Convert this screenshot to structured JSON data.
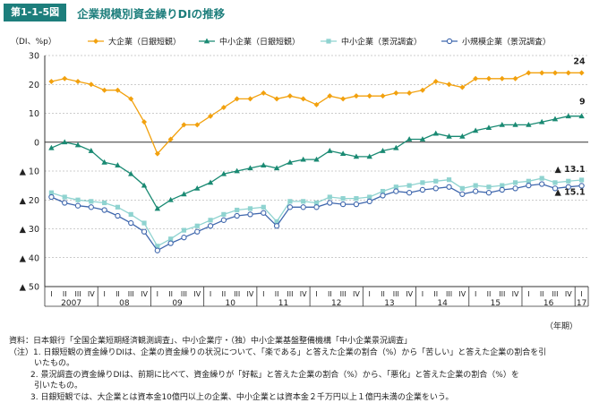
{
  "figure": {
    "number": "第1-1-5図",
    "title": "企業規模別資金繰りDIの推移"
  },
  "chart_data": {
    "type": "line",
    "title": "企業規模別資金繰りDIの推移",
    "ylabel": "（DI、%p）",
    "xlabel": "（年期）",
    "ylim": [
      -50,
      30
    ],
    "yticks": [
      30,
      20,
      10,
      0,
      -10,
      -20,
      -30,
      -40,
      -50
    ],
    "ytick_labels": [
      "30",
      "20",
      "10",
      "0",
      "▲ 10",
      "▲ 20",
      "▲ 30",
      "▲ 40",
      "▲ 50"
    ],
    "quarter_labels": [
      "I",
      "II",
      "III",
      "IV"
    ],
    "years": [
      "2007",
      "08",
      "09",
      "10",
      "11",
      "12",
      "13",
      "14",
      "15",
      "16",
      "17"
    ],
    "legend_position": "top",
    "series": [
      {
        "name": "大企業（日銀短観）",
        "color": "#f2a10e",
        "marker": "diamond",
        "values": [
          21,
          22,
          21,
          20,
          18,
          18,
          15,
          7,
          -4,
          1,
          6,
          6,
          9,
          12,
          15,
          15,
          17,
          15,
          16,
          15,
          13,
          16,
          15,
          16,
          16,
          16,
          17,
          17,
          18,
          21,
          20,
          19,
          22,
          22,
          22,
          22,
          24,
          24,
          24,
          24,
          24
        ],
        "end_label": "24"
      },
      {
        "name": "中小企業（日銀短観）",
        "color": "#1a8a73",
        "marker": "triangle",
        "values": [
          -2,
          0,
          -1,
          -3,
          -7,
          -8,
          -11,
          -15,
          -23,
          -20,
          -18,
          -16,
          -14,
          -11,
          -10,
          -9,
          -8,
          -9,
          -7,
          -6,
          -6,
          -3,
          -4,
          -5,
          -5,
          -3,
          -2,
          1,
          1,
          3,
          2,
          2,
          4,
          5,
          6,
          6,
          6,
          7,
          8,
          9,
          9
        ],
        "end_label": "9"
      },
      {
        "name": "中小企業（景況調査）",
        "color": "#8fd3d0",
        "marker": "square",
        "values": [
          -17.5,
          -19,
          -20,
          -20.5,
          -21,
          -22.5,
          -25,
          -28,
          -36,
          -33.5,
          -30.5,
          -29,
          -27,
          -25,
          -23.5,
          -23,
          -22.5,
          -27.5,
          -20.5,
          -20.5,
          -21,
          -19,
          -19.5,
          -19.5,
          -19,
          -17,
          -15.5,
          -15,
          -14,
          -13.5,
          -13,
          -16,
          -15,
          -15.5,
          -15,
          -14,
          -13.5,
          -12.5,
          -14,
          -13.5,
          -13.1
        ],
        "end_label": "▲ 13.1"
      },
      {
        "name": "小規模企業（景況調査）",
        "color": "#3f67ad",
        "marker": "circle",
        "values": [
          -19,
          -21,
          -22,
          -22.5,
          -23.5,
          -25.5,
          -28,
          -31,
          -37.5,
          -35,
          -33,
          -31,
          -29,
          -27,
          -25.5,
          -25,
          -24.5,
          -29,
          -22.5,
          -22.5,
          -22.5,
          -21,
          -21.5,
          -21.5,
          -20.5,
          -18.5,
          -17,
          -17.5,
          -16.5,
          -16,
          -15.5,
          -18,
          -17,
          -17.5,
          -16.5,
          -16,
          -15,
          -14.5,
          -16,
          -15.5,
          -15.1
        ],
        "end_label": "▲ 15.1"
      }
    ]
  },
  "notes": {
    "source": "資料：日本銀行「全国企業短期経済観測調査」、中小企業庁・（独）中小企業基盤整備機構「中小企業景況調査」",
    "n1a": "（注）1. 日銀短観の資金繰りDIは、企業の資金繰りの状況について、「楽である」と答えた企業の割合（%）から「苦しい」と答えた企業の割合を引",
    "n1b": "いたもの。",
    "n2a": "2. 景況調査の資金繰りDIは、前期に比べて、資金繰りが「好転」と答えた企業の割合（%）から、「悪化」と答えた企業の割合（%）を",
    "n2b": "引いたもの。",
    "n3": "3. 日銀短観では、大企業とは資本金10億円以上の企業、中小企業とは資本金２千万円以上１億円未満の企業をいう。"
  }
}
